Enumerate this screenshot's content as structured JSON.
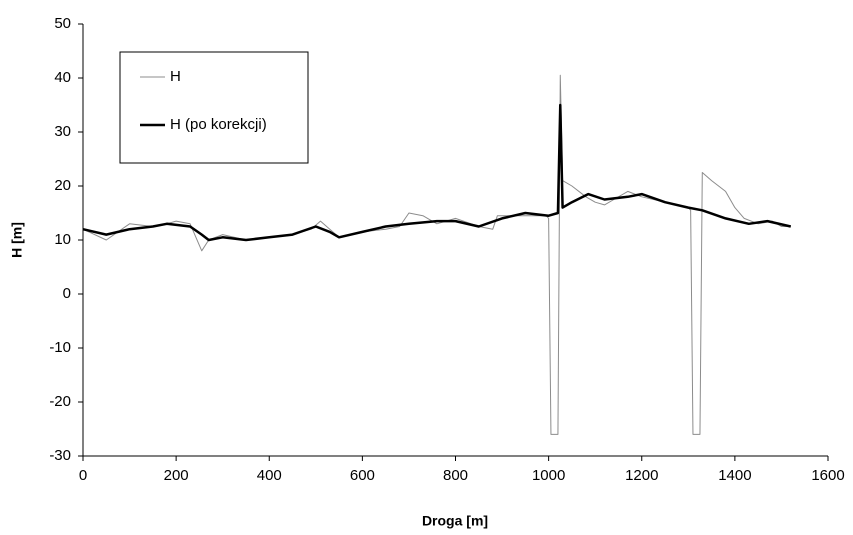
{
  "chart_data": {
    "type": "line",
    "x_label": "Droga [m]",
    "y_label": "H [m]",
    "xlim": [
      0,
      1600
    ],
    "xticks": [
      0,
      200,
      400,
      600,
      800,
      1000,
      1200,
      1400,
      1600
    ],
    "ylim": [
      -30,
      50
    ],
    "yticks": [
      -30,
      -20,
      -10,
      0,
      10,
      20,
      30,
      40,
      50
    ],
    "grid": false,
    "legend": "upper left",
    "series": [
      {
        "name": "H",
        "color": "#8c8c8c",
        "x": [
          0,
          50,
          100,
          150,
          180,
          200,
          230,
          255,
          270,
          300,
          350,
          400,
          450,
          490,
          510,
          530,
          550,
          600,
          650,
          680,
          700,
          730,
          760,
          800,
          850,
          880,
          890,
          950,
          995,
          1000,
          1005,
          1020,
          1025,
          1030,
          1050,
          1080,
          1100,
          1120,
          1140,
          1170,
          1200,
          1250,
          1300,
          1305,
          1310,
          1325,
          1330,
          1350,
          1380,
          1400,
          1420,
          1450,
          1480,
          1500,
          1520
        ],
        "values": [
          12,
          10,
          13,
          12.5,
          13,
          13.5,
          13,
          8,
          10,
          11,
          10,
          10.5,
          11,
          12,
          13.5,
          12,
          10.5,
          11.5,
          12,
          12.5,
          15,
          14.5,
          13,
          14,
          12.5,
          12,
          14.5,
          14.5,
          14.5,
          14,
          -26,
          -26,
          40.5,
          21,
          20,
          18,
          17,
          16.5,
          17.5,
          19,
          18,
          17,
          16,
          15.5,
          -26,
          -26,
          22.5,
          21,
          19,
          16,
          14,
          13,
          13.5,
          12.5,
          12.5
        ]
      },
      {
        "name": "H (po korekcji)",
        "color": "#000000",
        "x": [
          0,
          50,
          100,
          150,
          180,
          230,
          255,
          270,
          300,
          350,
          400,
          450,
          500,
          530,
          550,
          600,
          650,
          700,
          760,
          800,
          850,
          900,
          950,
          1000,
          1020,
          1025,
          1030,
          1050,
          1085,
          1120,
          1170,
          1200,
          1250,
          1300,
          1330,
          1380,
          1430,
          1470,
          1520
        ],
        "values": [
          12,
          11,
          12,
          12.5,
          13,
          12.5,
          11,
          10,
          10.5,
          10,
          10.5,
          11,
          12.5,
          11.5,
          10.5,
          11.5,
          12.5,
          13,
          13.5,
          13.5,
          12.5,
          14,
          15,
          14.5,
          15,
          35,
          16,
          17,
          18.5,
          17.5,
          18,
          18.5,
          17,
          16,
          15.5,
          14,
          13,
          13.5,
          12.5
        ]
      }
    ]
  }
}
